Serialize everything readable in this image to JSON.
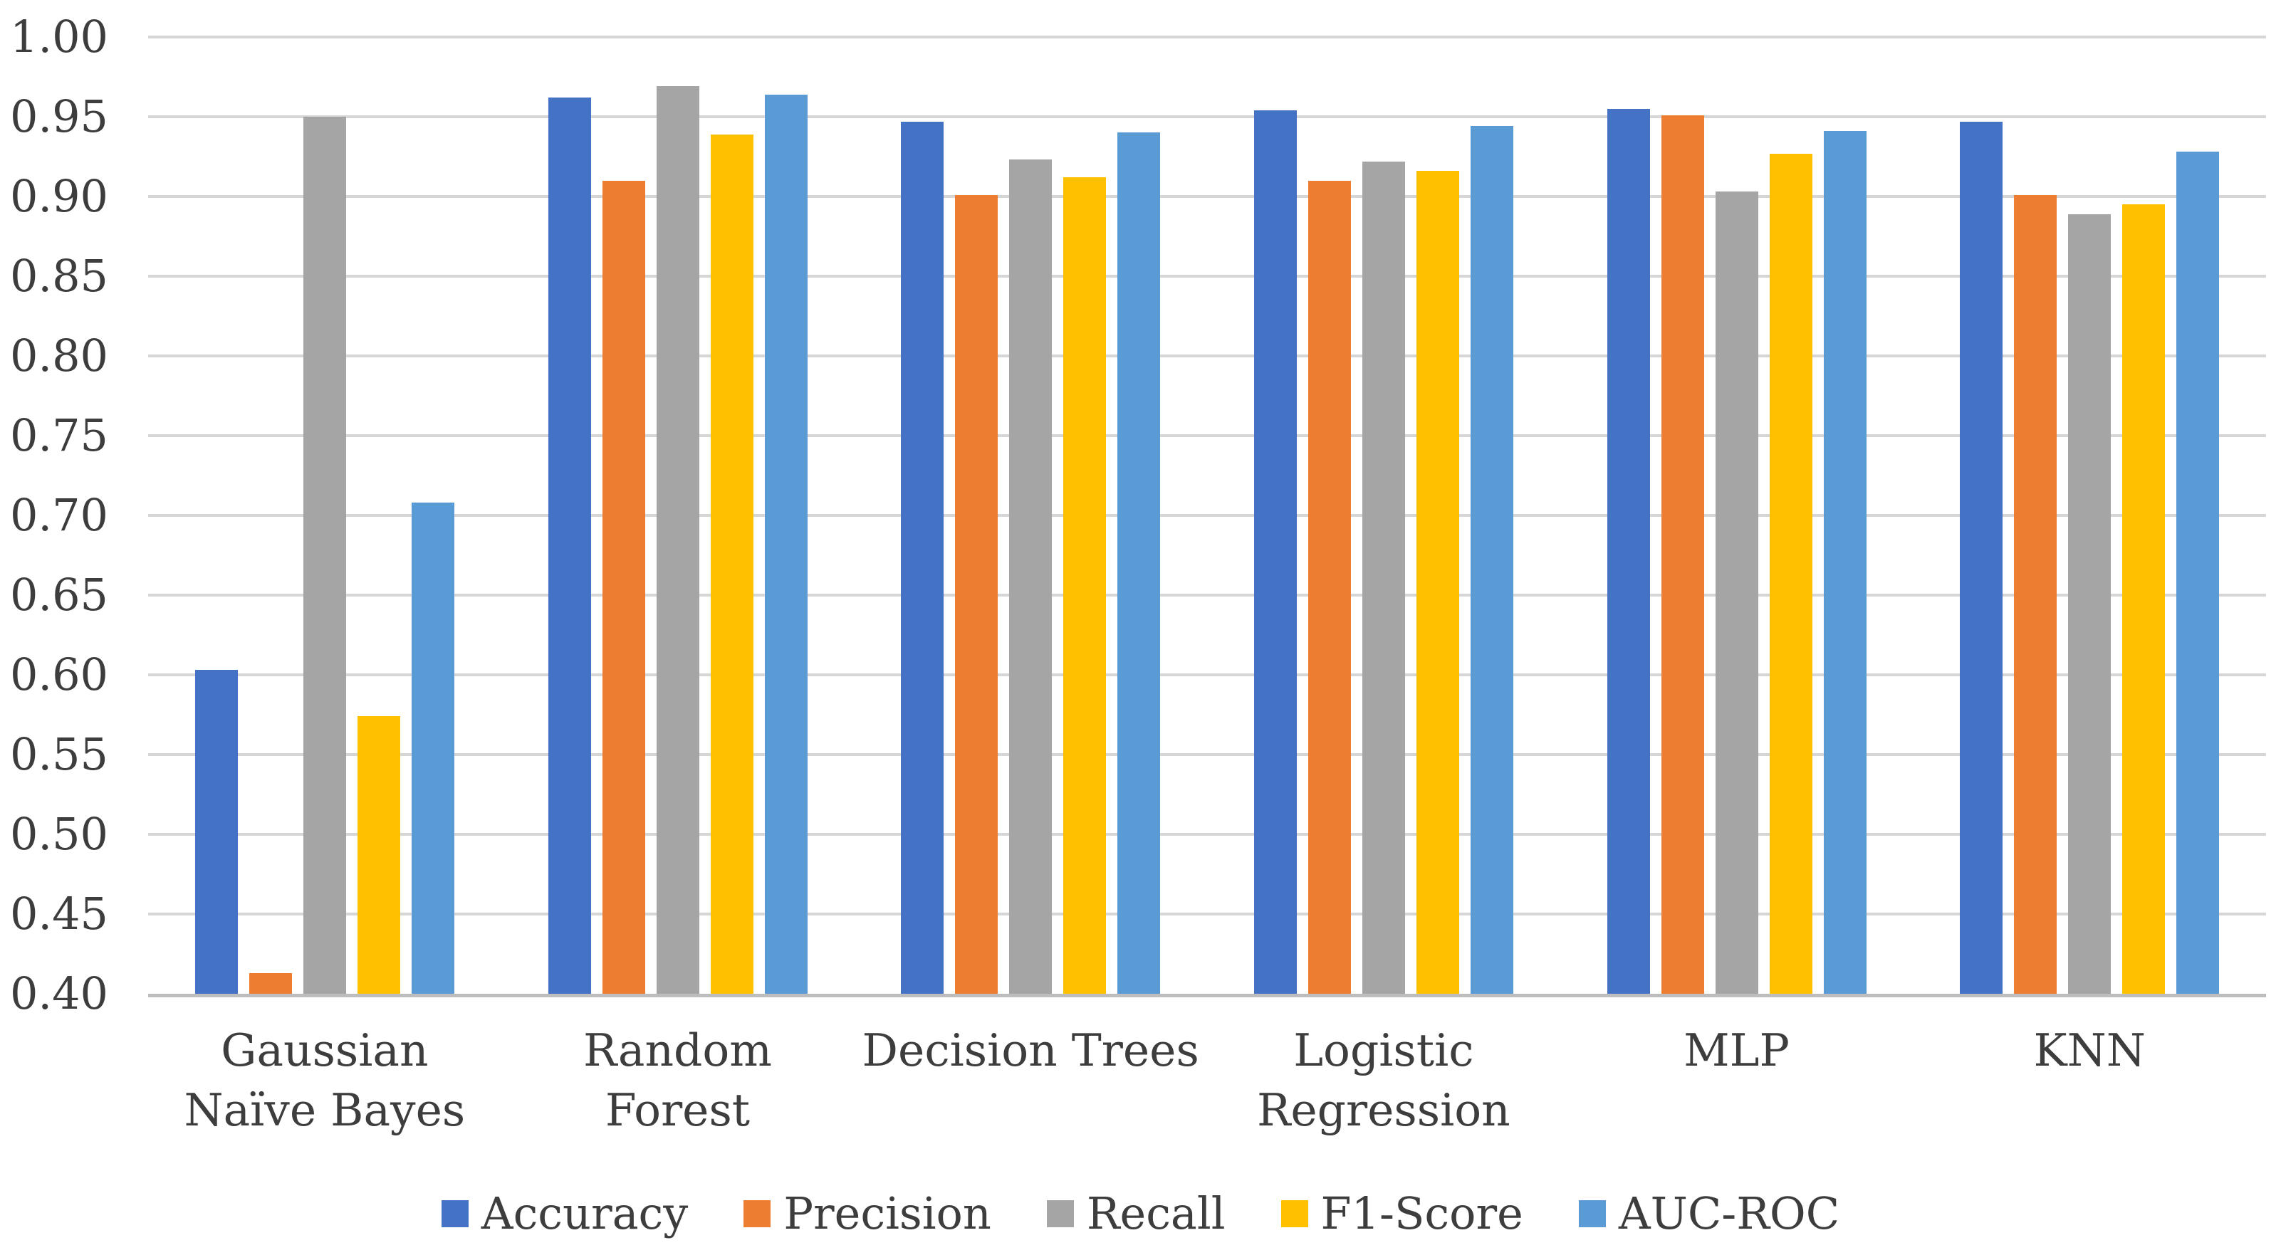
{
  "chart_data": {
    "type": "bar",
    "title": "",
    "xlabel": "",
    "ylabel": "",
    "categories": [
      "Gaussian Naïve Bayes",
      "Random Forest",
      "Decision Trees",
      "Logistic Regression",
      "MLP",
      "KNN"
    ],
    "series": [
      {
        "name": "Accuracy",
        "color": "#4472C4",
        "values": [
          0.603,
          0.962,
          0.947,
          0.954,
          0.955,
          0.947
        ]
      },
      {
        "name": "Precision",
        "color": "#ED7D31",
        "values": [
          0.413,
          0.91,
          0.901,
          0.91,
          0.951,
          0.901
        ]
      },
      {
        "name": "Recall",
        "color": "#A5A5A5",
        "values": [
          0.95,
          0.969,
          0.923,
          0.922,
          0.903,
          0.889
        ]
      },
      {
        "name": "F1-Score",
        "color": "#FFC000",
        "values": [
          0.574,
          0.939,
          0.912,
          0.916,
          0.927,
          0.895
        ]
      },
      {
        "name": "AUC-ROC",
        "color": "#5B9BD5",
        "values": [
          0.708,
          0.964,
          0.94,
          0.944,
          0.941,
          0.928
        ]
      }
    ],
    "ylim": [
      0.4,
      1.0
    ],
    "ytick_step": 0.05,
    "yticks": [
      "1.00",
      "0.95",
      "0.90",
      "0.85",
      "0.80",
      "0.75",
      "0.70",
      "0.65",
      "0.60",
      "0.55",
      "0.50",
      "0.45",
      "0.40"
    ],
    "grid": "horizontal",
    "legend_position": "bottom"
  },
  "colors": {
    "background": "#FFFFFF",
    "gridline": "#D6D6D6",
    "baseline": "#BDBDBD",
    "text": "#3D3D3D"
  }
}
